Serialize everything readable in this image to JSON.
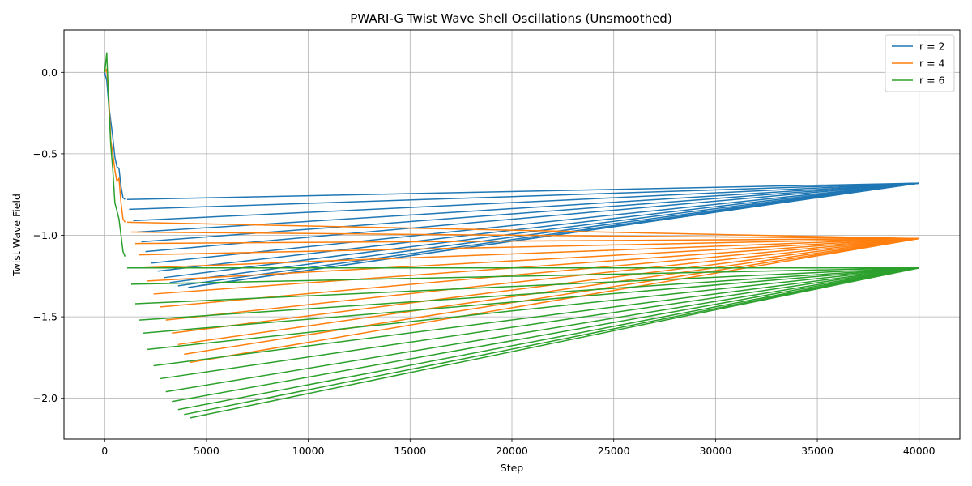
{
  "chart_data": {
    "type": "line",
    "title": "PWARI-G Twist Wave Shell Oscillations (Unsmoothed)",
    "xlabel": "Step",
    "ylabel": "Twist Wave Field",
    "xlim": [
      -2000,
      42000
    ],
    "ylim": [
      -2.25,
      0.26
    ],
    "xticks": [
      0,
      5000,
      10000,
      15000,
      20000,
      25000,
      30000,
      35000,
      40000
    ],
    "yticks": [
      0.0,
      -0.5,
      -1.0,
      -1.5,
      -2.0
    ],
    "xtick_labels": [
      "0",
      "5000",
      "10000",
      "15000",
      "20000",
      "25000",
      "30000",
      "35000",
      "40000"
    ],
    "ytick_labels": [
      "0.0",
      "−0.5",
      "−1.0",
      "−1.5",
      "−2.0"
    ],
    "grid": true,
    "legend_position": "top-right",
    "series": [
      {
        "name": "r = 2",
        "color": "#1f77b4",
        "initial": {
          "x": [
            0,
            100,
            200,
            300,
            400,
            500,
            600,
            700,
            800,
            900,
            1000
          ],
          "y": [
            0.0,
            -0.05,
            -0.2,
            -0.3,
            -0.4,
            -0.52,
            -0.58,
            -0.59,
            -0.7,
            -0.77,
            -0.78
          ]
        },
        "segments": [
          {
            "x": [
              1100,
              40000
            ],
            "y": [
              -0.78,
              -0.68
            ]
          },
          {
            "x": [
              1200,
              40000
            ],
            "y": [
              -0.84,
              -0.68
            ]
          },
          {
            "x": [
              1400,
              40000
            ],
            "y": [
              -0.91,
              -0.68
            ]
          },
          {
            "x": [
              1600,
              40000
            ],
            "y": [
              -0.98,
              -0.68
            ]
          },
          {
            "x": [
              1800,
              40000
            ],
            "y": [
              -1.04,
              -0.68
            ]
          },
          {
            "x": [
              2000,
              40000
            ],
            "y": [
              -1.1,
              -0.68
            ]
          },
          {
            "x": [
              2300,
              40000
            ],
            "y": [
              -1.17,
              -0.68
            ]
          },
          {
            "x": [
              2600,
              40000
            ],
            "y": [
              -1.22,
              -0.68
            ]
          },
          {
            "x": [
              2900,
              40000
            ],
            "y": [
              -1.26,
              -0.68
            ]
          },
          {
            "x": [
              3200,
              40000
            ],
            "y": [
              -1.29,
              -0.68
            ]
          },
          {
            "x": [
              3600,
              40000
            ],
            "y": [
              -1.31,
              -0.68
            ]
          },
          {
            "x": [
              4100,
              40000
            ],
            "y": [
              -1.32,
              -0.68
            ]
          },
          {
            "x": [
              4600,
              40000
            ],
            "y": [
              -1.31,
              -0.68
            ]
          }
        ]
      },
      {
        "name": "r = 4",
        "color": "#ff7f0e",
        "initial": {
          "x": [
            0,
            100,
            200,
            300,
            400,
            500,
            600,
            700,
            800,
            900,
            1000
          ],
          "y": [
            0.0,
            0.02,
            -0.15,
            -0.42,
            -0.5,
            -0.6,
            -0.67,
            -0.65,
            -0.8,
            -0.9,
            -0.92
          ]
        },
        "segments": [
          {
            "x": [
              1100,
              40000
            ],
            "y": [
              -0.92,
              -1.02
            ]
          },
          {
            "x": [
              1300,
              40000
            ],
            "y": [
              -0.98,
              -1.02
            ]
          },
          {
            "x": [
              1500,
              40000
            ],
            "y": [
              -1.05,
              -1.02
            ]
          },
          {
            "x": [
              1700,
              40000
            ],
            "y": [
              -1.12,
              -1.02
            ]
          },
          {
            "x": [
              1900,
              40000
            ],
            "y": [
              -1.2,
              -1.02
            ]
          },
          {
            "x": [
              2100,
              40000
            ],
            "y": [
              -1.28,
              -1.02
            ]
          },
          {
            "x": [
              2400,
              40000
            ],
            "y": [
              -1.36,
              -1.02
            ]
          },
          {
            "x": [
              2700,
              40000
            ],
            "y": [
              -1.44,
              -1.02
            ]
          },
          {
            "x": [
              3000,
              40000
            ],
            "y": [
              -1.52,
              -1.02
            ]
          },
          {
            "x": [
              3300,
              40000
            ],
            "y": [
              -1.6,
              -1.02
            ]
          },
          {
            "x": [
              3600,
              40000
            ],
            "y": [
              -1.67,
              -1.02
            ]
          },
          {
            "x": [
              3900,
              40000
            ],
            "y": [
              -1.73,
              -1.02
            ]
          },
          {
            "x": [
              4200,
              40000
            ],
            "y": [
              -1.78,
              -1.02
            ]
          }
        ]
      },
      {
        "name": "r = 6",
        "color": "#2ca02c",
        "initial": {
          "x": [
            0,
            100,
            200,
            300,
            400,
            500,
            600,
            700,
            800,
            900,
            1000
          ],
          "y": [
            0.0,
            0.12,
            -0.2,
            -0.45,
            -0.6,
            -0.8,
            -0.85,
            -0.9,
            -1.0,
            -1.1,
            -1.13
          ]
        },
        "segments": [
          {
            "x": [
              1100,
              40000
            ],
            "y": [
              -1.2,
              -1.2
            ]
          },
          {
            "x": [
              1300,
              40000
            ],
            "y": [
              -1.3,
              -1.2
            ]
          },
          {
            "x": [
              1500,
              40000
            ],
            "y": [
              -1.42,
              -1.2
            ]
          },
          {
            "x": [
              1700,
              40000
            ],
            "y": [
              -1.52,
              -1.2
            ]
          },
          {
            "x": [
              1900,
              40000
            ],
            "y": [
              -1.6,
              -1.2
            ]
          },
          {
            "x": [
              2100,
              40000
            ],
            "y": [
              -1.7,
              -1.2
            ]
          },
          {
            "x": [
              2400,
              40000
            ],
            "y": [
              -1.8,
              -1.2
            ]
          },
          {
            "x": [
              2700,
              40000
            ],
            "y": [
              -1.88,
              -1.2
            ]
          },
          {
            "x": [
              3000,
              40000
            ],
            "y": [
              -1.96,
              -1.2
            ]
          },
          {
            "x": [
              3300,
              40000
            ],
            "y": [
              -2.02,
              -1.2
            ]
          },
          {
            "x": [
              3600,
              40000
            ],
            "y": [
              -2.07,
              -1.2
            ]
          },
          {
            "x": [
              3900,
              40000
            ],
            "y": [
              -2.1,
              -1.2
            ]
          },
          {
            "x": [
              4200,
              40000
            ],
            "y": [
              -2.12,
              -1.2
            ]
          }
        ]
      }
    ]
  }
}
